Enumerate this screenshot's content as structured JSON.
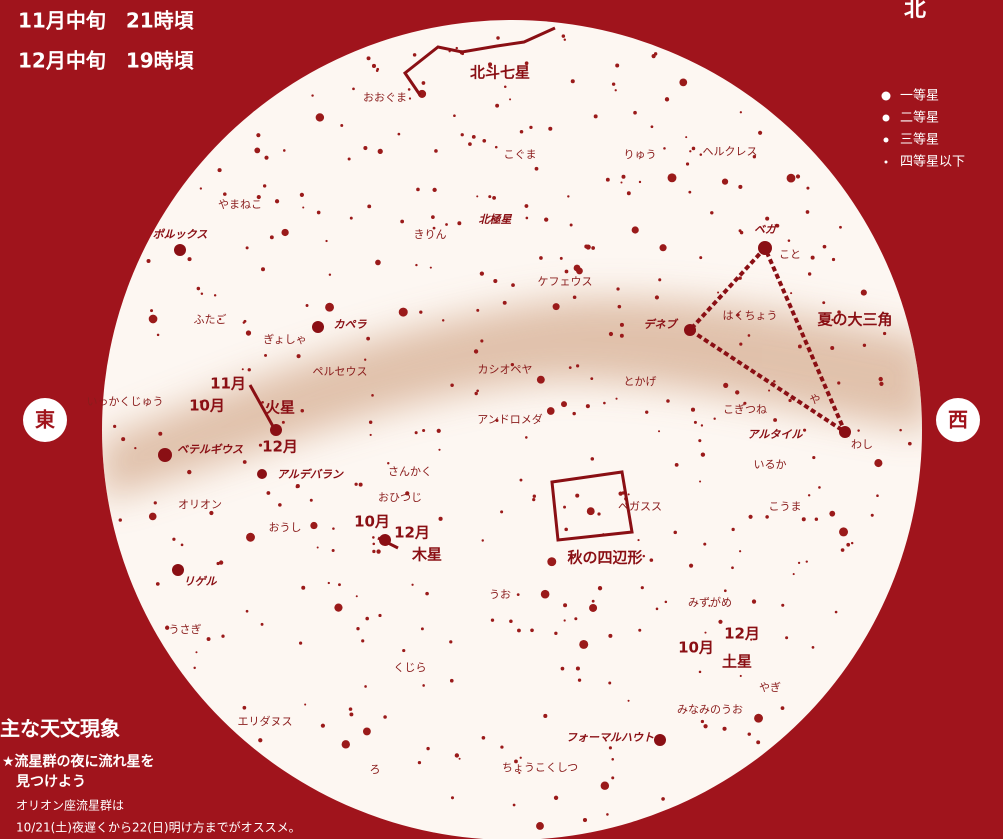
{
  "header": {
    "lines": [
      "11月中旬　21時頃",
      "12月中旬　19時頃"
    ]
  },
  "legend": [
    "一等星",
    "二等星",
    "三等星",
    "四等星以下"
  ],
  "directions": {
    "north": "北",
    "east": "東",
    "west": "西"
  },
  "labels": [
    "北斗七星",
    "おおぐま",
    "こぐま",
    "北極星",
    "りゅう",
    "ヘルクレス",
    "やまねこ",
    "きりん",
    "ポルックス",
    "ベガ",
    "こと",
    "ケフェウス",
    "ふたご",
    "カペラ",
    "デネブ",
    "はくちょう",
    "夏の大三角",
    "ぎょしゃ",
    "ペルセウス",
    "カシオペヤ",
    "とかげ",
    "11月",
    "いっかくじゅう",
    "10月",
    "火星",
    "こぎつね",
    "や",
    "アンドロメダ",
    "アルタイル",
    "わし",
    "ベテルギウス",
    "12月",
    "いるか",
    "アルデバラン",
    "さんかく",
    "おひつじ",
    "オリオン",
    "ペガスス",
    "こうま",
    "10月",
    "12月",
    "おうし",
    "木星",
    "秋の四辺形",
    "リゲル",
    "うお",
    "みずがめ",
    "うさぎ",
    "12月",
    "10月",
    "土星",
    "くじら",
    "やぎ",
    "エリダヌス",
    "みなみのうお",
    "フォーマルハウト",
    "ろ",
    "ちょうこくしつ"
  ],
  "events": {
    "title": "主な天文現象",
    "lines": [
      "★流星群の夜に流れ星を",
      "見つけよう",
      "オリオン座流星群は",
      "10/21(土)夜遅くから22(日)明け方までがオススメ。"
    ]
  }
}
